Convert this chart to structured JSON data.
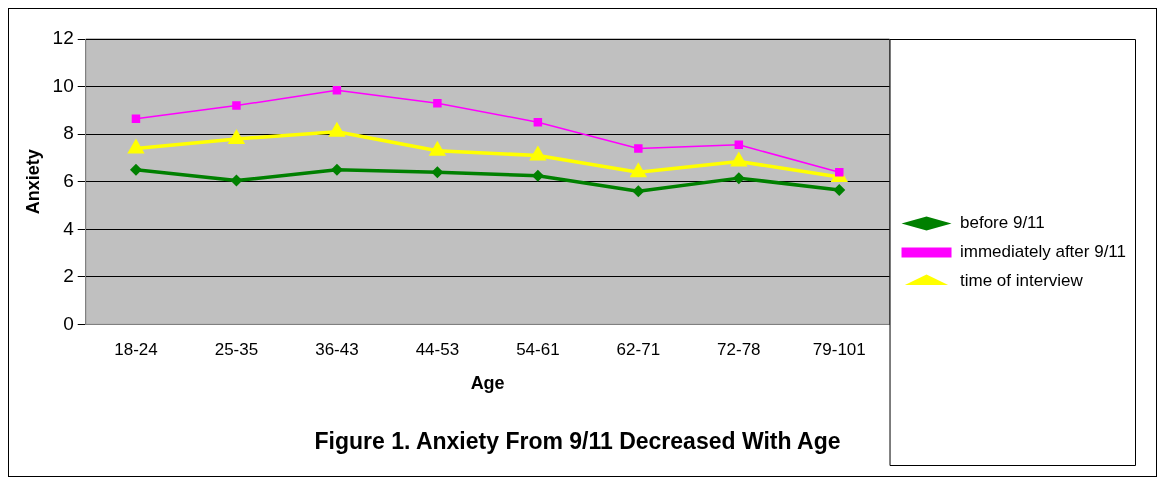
{
  "chart_data": {
    "type": "line",
    "title": "Figure 1. Anxiety From 9/11 Decreased With Age",
    "xlabel": "Age",
    "ylabel": "Anxiety",
    "categories": [
      "18-24",
      "25-35",
      "36-43",
      "44-53",
      "54-61",
      "62-71",
      "72-78",
      "79-101"
    ],
    "series": [
      {
        "name": "before 9/11",
        "color": "#008000",
        "marker": "diamond",
        "values": [
          6.5,
          6.05,
          6.5,
          6.4,
          6.25,
          5.6,
          6.15,
          5.65
        ]
      },
      {
        "name": "immediately after 9/11",
        "color": "#ff00ff",
        "marker": "square",
        "values": [
          8.65,
          9.2,
          9.85,
          9.3,
          8.5,
          7.4,
          7.55,
          6.4
        ]
      },
      {
        "name": "time of interview",
        "color": "#ffff00",
        "marker": "triangle",
        "values": [
          7.4,
          7.8,
          8.1,
          7.3,
          7.1,
          6.4,
          6.85,
          6.2
        ]
      }
    ],
    "ylim": [
      0,
      12
    ],
    "yticks": [
      0,
      2,
      4,
      6,
      8,
      10,
      12
    ],
    "grid": "y",
    "legend": "right"
  }
}
